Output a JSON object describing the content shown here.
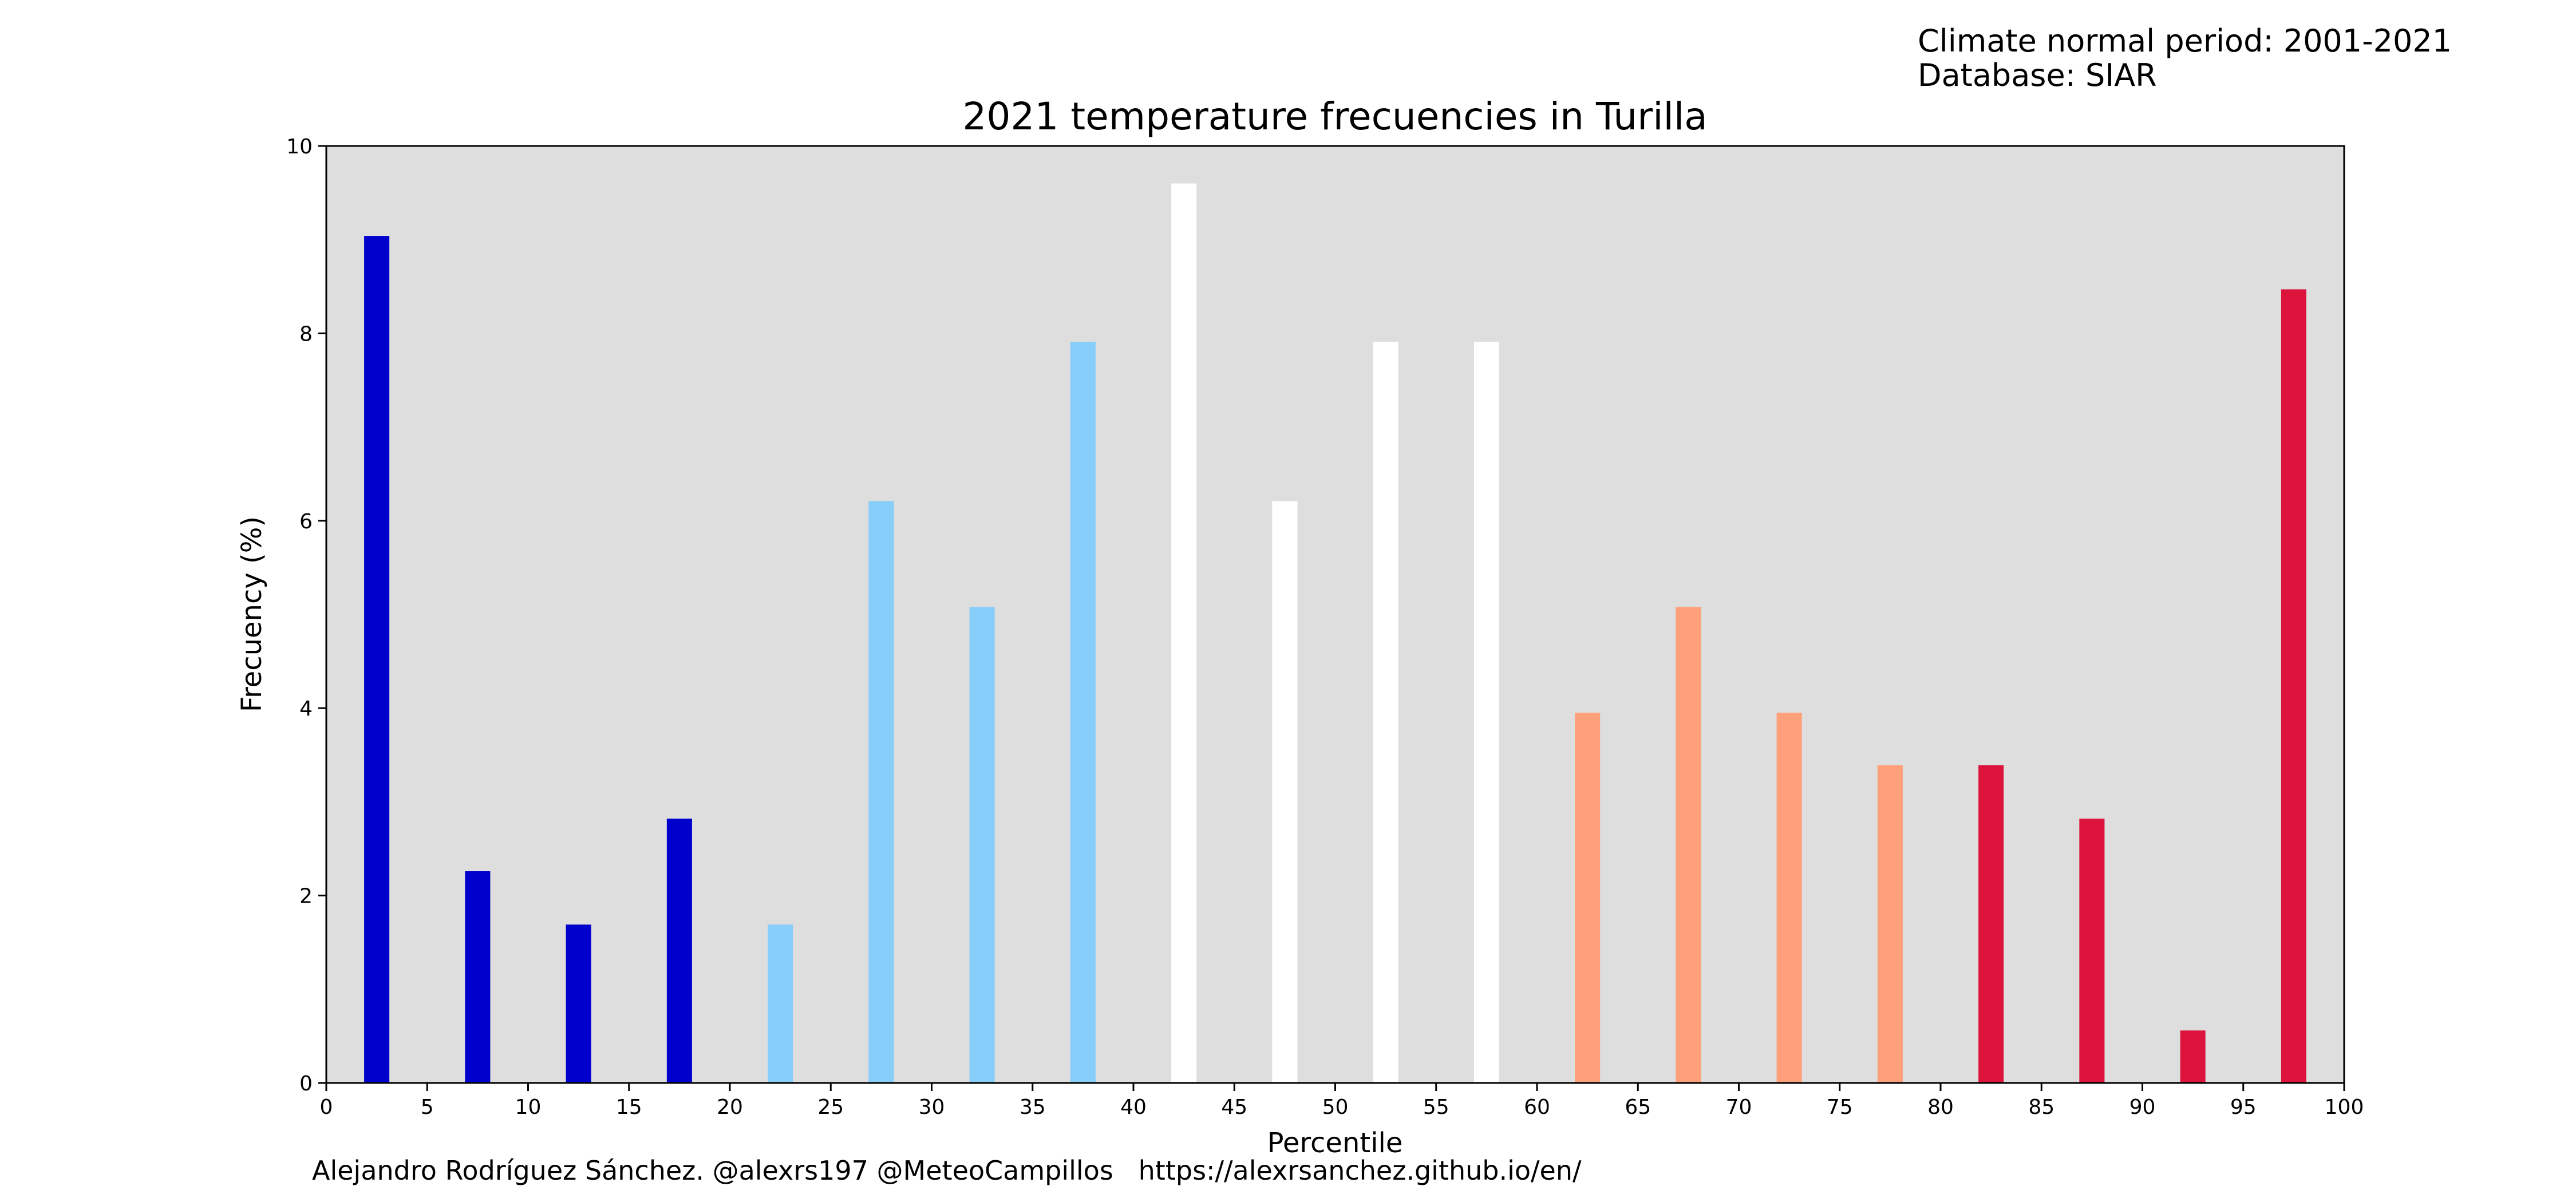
{
  "header_info": {
    "period_line": "Climate normal period: 2001-2021",
    "database_line": "Database: SIAR"
  },
  "footer": {
    "credit": "Alejandro Rodríguez Sánchez. @alexrs197 @MeteoCampillos   https://alexrsanchez.github.io/en/"
  },
  "chart_data": {
    "type": "bar",
    "title": "2021 temperature frecuencies in Turilla",
    "xlabel": "Percentile",
    "ylabel": "Frecuency (%)",
    "xlim": [
      0,
      100
    ],
    "ylim": [
      0,
      10
    ],
    "xticks": [
      0,
      5,
      10,
      15,
      20,
      25,
      30,
      35,
      40,
      45,
      50,
      55,
      60,
      65,
      70,
      75,
      80,
      85,
      90,
      95,
      100
    ],
    "yticks": [
      0,
      2,
      4,
      6,
      8,
      10
    ],
    "grid": false,
    "background_color": "#dedede",
    "bar_width": 1.25,
    "x": [
      2.5,
      7.5,
      12.5,
      17.5,
      22.5,
      27.5,
      32.5,
      37.5,
      42.5,
      47.5,
      52.5,
      57.5,
      62.5,
      67.5,
      72.5,
      77.5,
      82.5,
      87.5,
      92.5,
      97.5
    ],
    "values": [
      9.04,
      2.26,
      1.69,
      2.82,
      1.69,
      6.21,
      5.08,
      7.91,
      9.6,
      6.21,
      7.91,
      7.91,
      3.95,
      5.08,
      3.95,
      3.39,
      3.39,
      2.82,
      0.56,
      8.47
    ],
    "colors": [
      "#0000cd",
      "#0000cd",
      "#0000cd",
      "#0000cd",
      "#87cefa",
      "#87cefa",
      "#87cefa",
      "#87cefa",
      "#ffffff",
      "#ffffff",
      "#ffffff",
      "#ffffff",
      "#ffa07a",
      "#ffa07a",
      "#ffa07a",
      "#ffa07a",
      "#dc143c",
      "#dc143c",
      "#dc143c",
      "#dc143c"
    ]
  }
}
